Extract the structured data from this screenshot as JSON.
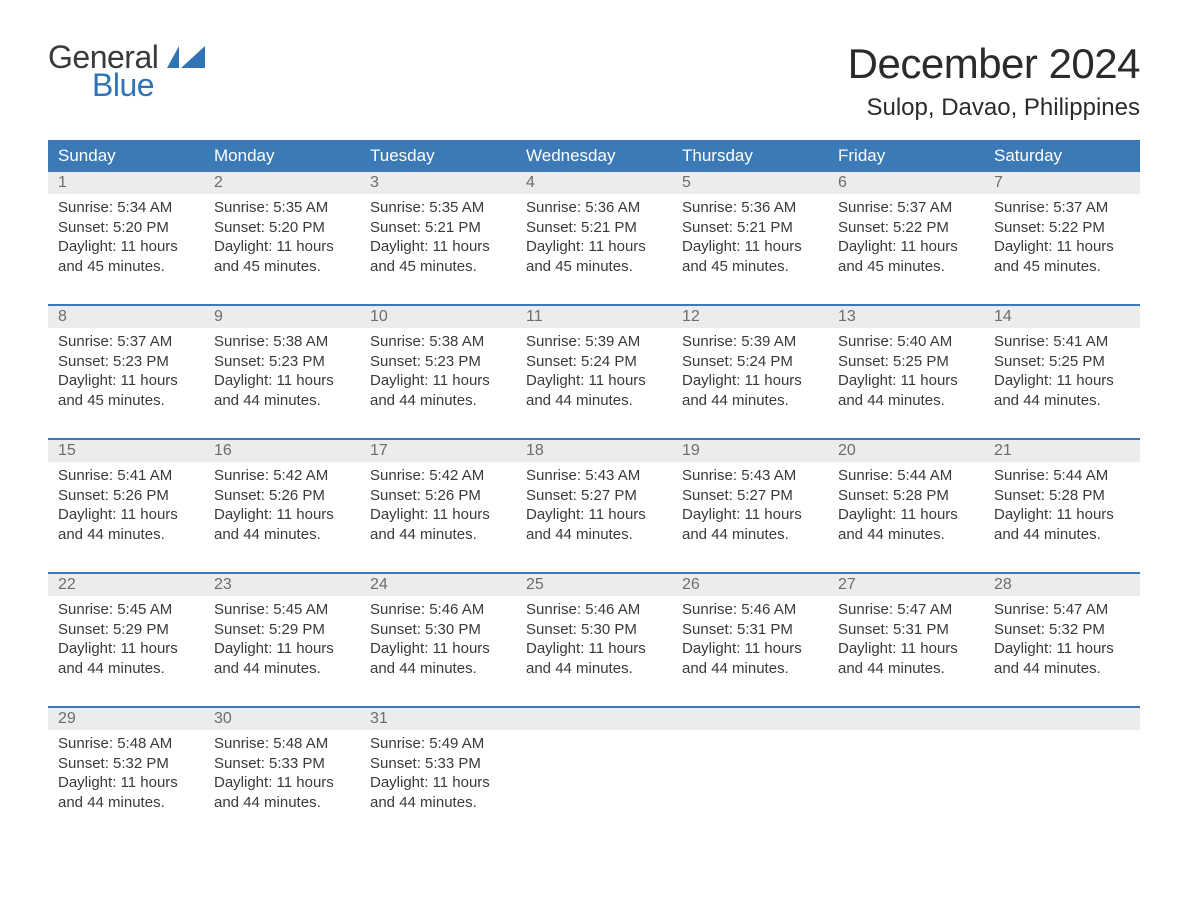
{
  "logo": {
    "general": "General",
    "blue": "Blue",
    "flag_color": "#2f74b5"
  },
  "header": {
    "month_title": "December 2024",
    "location": "Sulop, Davao, Philippines"
  },
  "colors": {
    "header_bg": "#3b79b7",
    "header_text": "#ffffff",
    "daynum_bg": "#ececec",
    "daynum_text": "#6d6d6d",
    "body_text": "#3a3a3a",
    "week_border": "#3b79b7",
    "logo_blue": "#2f74b5"
  },
  "day_headers": [
    "Sunday",
    "Monday",
    "Tuesday",
    "Wednesday",
    "Thursday",
    "Friday",
    "Saturday"
  ],
  "weeks": [
    [
      {
        "n": "1",
        "sr": "Sunrise: 5:34 AM",
        "ss": "Sunset: 5:20 PM",
        "d1": "Daylight: 11 hours",
        "d2": "and 45 minutes."
      },
      {
        "n": "2",
        "sr": "Sunrise: 5:35 AM",
        "ss": "Sunset: 5:20 PM",
        "d1": "Daylight: 11 hours",
        "d2": "and 45 minutes."
      },
      {
        "n": "3",
        "sr": "Sunrise: 5:35 AM",
        "ss": "Sunset: 5:21 PM",
        "d1": "Daylight: 11 hours",
        "d2": "and 45 minutes."
      },
      {
        "n": "4",
        "sr": "Sunrise: 5:36 AM",
        "ss": "Sunset: 5:21 PM",
        "d1": "Daylight: 11 hours",
        "d2": "and 45 minutes."
      },
      {
        "n": "5",
        "sr": "Sunrise: 5:36 AM",
        "ss": "Sunset: 5:21 PM",
        "d1": "Daylight: 11 hours",
        "d2": "and 45 minutes."
      },
      {
        "n": "6",
        "sr": "Sunrise: 5:37 AM",
        "ss": "Sunset: 5:22 PM",
        "d1": "Daylight: 11 hours",
        "d2": "and 45 minutes."
      },
      {
        "n": "7",
        "sr": "Sunrise: 5:37 AM",
        "ss": "Sunset: 5:22 PM",
        "d1": "Daylight: 11 hours",
        "d2": "and 45 minutes."
      }
    ],
    [
      {
        "n": "8",
        "sr": "Sunrise: 5:37 AM",
        "ss": "Sunset: 5:23 PM",
        "d1": "Daylight: 11 hours",
        "d2": "and 45 minutes."
      },
      {
        "n": "9",
        "sr": "Sunrise: 5:38 AM",
        "ss": "Sunset: 5:23 PM",
        "d1": "Daylight: 11 hours",
        "d2": "and 44 minutes."
      },
      {
        "n": "10",
        "sr": "Sunrise: 5:38 AM",
        "ss": "Sunset: 5:23 PM",
        "d1": "Daylight: 11 hours",
        "d2": "and 44 minutes."
      },
      {
        "n": "11",
        "sr": "Sunrise: 5:39 AM",
        "ss": "Sunset: 5:24 PM",
        "d1": "Daylight: 11 hours",
        "d2": "and 44 minutes."
      },
      {
        "n": "12",
        "sr": "Sunrise: 5:39 AM",
        "ss": "Sunset: 5:24 PM",
        "d1": "Daylight: 11 hours",
        "d2": "and 44 minutes."
      },
      {
        "n": "13",
        "sr": "Sunrise: 5:40 AM",
        "ss": "Sunset: 5:25 PM",
        "d1": "Daylight: 11 hours",
        "d2": "and 44 minutes."
      },
      {
        "n": "14",
        "sr": "Sunrise: 5:41 AM",
        "ss": "Sunset: 5:25 PM",
        "d1": "Daylight: 11 hours",
        "d2": "and 44 minutes."
      }
    ],
    [
      {
        "n": "15",
        "sr": "Sunrise: 5:41 AM",
        "ss": "Sunset: 5:26 PM",
        "d1": "Daylight: 11 hours",
        "d2": "and 44 minutes."
      },
      {
        "n": "16",
        "sr": "Sunrise: 5:42 AM",
        "ss": "Sunset: 5:26 PM",
        "d1": "Daylight: 11 hours",
        "d2": "and 44 minutes."
      },
      {
        "n": "17",
        "sr": "Sunrise: 5:42 AM",
        "ss": "Sunset: 5:26 PM",
        "d1": "Daylight: 11 hours",
        "d2": "and 44 minutes."
      },
      {
        "n": "18",
        "sr": "Sunrise: 5:43 AM",
        "ss": "Sunset: 5:27 PM",
        "d1": "Daylight: 11 hours",
        "d2": "and 44 minutes."
      },
      {
        "n": "19",
        "sr": "Sunrise: 5:43 AM",
        "ss": "Sunset: 5:27 PM",
        "d1": "Daylight: 11 hours",
        "d2": "and 44 minutes."
      },
      {
        "n": "20",
        "sr": "Sunrise: 5:44 AM",
        "ss": "Sunset: 5:28 PM",
        "d1": "Daylight: 11 hours",
        "d2": "and 44 minutes."
      },
      {
        "n": "21",
        "sr": "Sunrise: 5:44 AM",
        "ss": "Sunset: 5:28 PM",
        "d1": "Daylight: 11 hours",
        "d2": "and 44 minutes."
      }
    ],
    [
      {
        "n": "22",
        "sr": "Sunrise: 5:45 AM",
        "ss": "Sunset: 5:29 PM",
        "d1": "Daylight: 11 hours",
        "d2": "and 44 minutes."
      },
      {
        "n": "23",
        "sr": "Sunrise: 5:45 AM",
        "ss": "Sunset: 5:29 PM",
        "d1": "Daylight: 11 hours",
        "d2": "and 44 minutes."
      },
      {
        "n": "24",
        "sr": "Sunrise: 5:46 AM",
        "ss": "Sunset: 5:30 PM",
        "d1": "Daylight: 11 hours",
        "d2": "and 44 minutes."
      },
      {
        "n": "25",
        "sr": "Sunrise: 5:46 AM",
        "ss": "Sunset: 5:30 PM",
        "d1": "Daylight: 11 hours",
        "d2": "and 44 minutes."
      },
      {
        "n": "26",
        "sr": "Sunrise: 5:46 AM",
        "ss": "Sunset: 5:31 PM",
        "d1": "Daylight: 11 hours",
        "d2": "and 44 minutes."
      },
      {
        "n": "27",
        "sr": "Sunrise: 5:47 AM",
        "ss": "Sunset: 5:31 PM",
        "d1": "Daylight: 11 hours",
        "d2": "and 44 minutes."
      },
      {
        "n": "28",
        "sr": "Sunrise: 5:47 AM",
        "ss": "Sunset: 5:32 PM",
        "d1": "Daylight: 11 hours",
        "d2": "and 44 minutes."
      }
    ],
    [
      {
        "n": "29",
        "sr": "Sunrise: 5:48 AM",
        "ss": "Sunset: 5:32 PM",
        "d1": "Daylight: 11 hours",
        "d2": "and 44 minutes."
      },
      {
        "n": "30",
        "sr": "Sunrise: 5:48 AM",
        "ss": "Sunset: 5:33 PM",
        "d1": "Daylight: 11 hours",
        "d2": "and 44 minutes."
      },
      {
        "n": "31",
        "sr": "Sunrise: 5:49 AM",
        "ss": "Sunset: 5:33 PM",
        "d1": "Daylight: 11 hours",
        "d2": "and 44 minutes."
      },
      {
        "n": "",
        "sr": "",
        "ss": "",
        "d1": "",
        "d2": ""
      },
      {
        "n": "",
        "sr": "",
        "ss": "",
        "d1": "",
        "d2": ""
      },
      {
        "n": "",
        "sr": "",
        "ss": "",
        "d1": "",
        "d2": ""
      },
      {
        "n": "",
        "sr": "",
        "ss": "",
        "d1": "",
        "d2": ""
      }
    ]
  ]
}
